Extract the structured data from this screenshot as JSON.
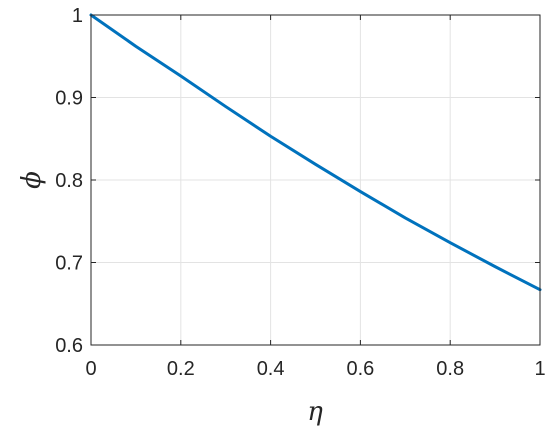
{
  "chart_data": {
    "type": "line",
    "title": "",
    "xlabel": "η",
    "ylabel": "ϕ",
    "xlim": [
      0,
      1
    ],
    "ylim": [
      0.6,
      1
    ],
    "x_ticks": [
      0,
      0.2,
      0.4,
      0.6,
      0.8,
      1
    ],
    "x_tick_labels": [
      "0",
      "0.2",
      "0.4",
      "0.6",
      "0.8",
      "1"
    ],
    "y_ticks": [
      0.6,
      0.7,
      0.8,
      0.9,
      1
    ],
    "y_tick_labels": [
      "0.6",
      "0.7",
      "0.8",
      "0.9",
      "1"
    ],
    "grid": true,
    "legend": "none",
    "series": [
      {
        "color": "#0072BD",
        "x": [
          0,
          0.1,
          0.2,
          0.3,
          0.4,
          0.5,
          0.6,
          0.7,
          0.8,
          0.9,
          1.0
        ],
        "y": [
          1.0,
          0.962,
          0.926,
          0.889,
          0.853,
          0.819,
          0.786,
          0.754,
          0.724,
          0.695,
          0.667
        ]
      }
    ]
  }
}
